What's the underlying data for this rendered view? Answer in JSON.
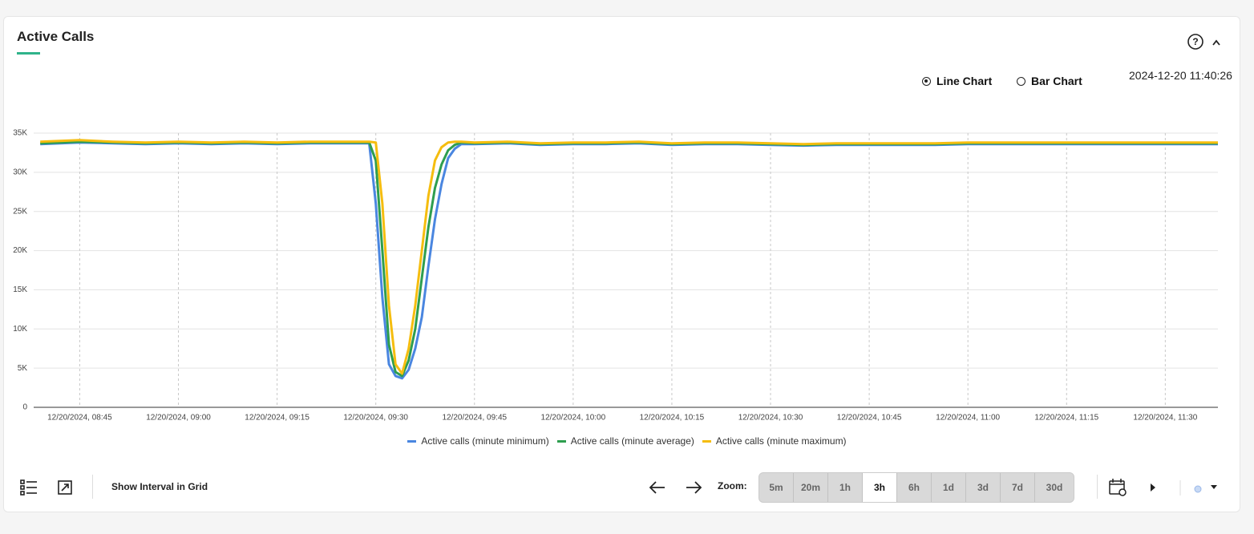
{
  "header": {
    "title": "Active Calls"
  },
  "view_options": [
    {
      "label": "Line Chart",
      "selected": true
    },
    {
      "label": "Bar Chart",
      "selected": false
    }
  ],
  "timestamp": "2024-12-20 11:40:26",
  "chart_data": {
    "type": "line",
    "x": [
      "12/20/2024, 08:39",
      "12/20/2024, 08:45",
      "12/20/2024, 08:50",
      "12/20/2024, 08:55",
      "12/20/2024, 09:00",
      "12/20/2024, 09:05",
      "12/20/2024, 09:10",
      "12/20/2024, 09:15",
      "12/20/2024, 09:20",
      "12/20/2024, 09:25",
      "12/20/2024, 09:29",
      "12/20/2024, 09:30",
      "12/20/2024, 09:31",
      "12/20/2024, 09:32",
      "12/20/2024, 09:33",
      "12/20/2024, 09:34",
      "12/20/2024, 09:35",
      "12/20/2024, 09:36",
      "12/20/2024, 09:37",
      "12/20/2024, 09:38",
      "12/20/2024, 09:39",
      "12/20/2024, 09:40",
      "12/20/2024, 09:41",
      "12/20/2024, 09:42",
      "12/20/2024, 09:43",
      "12/20/2024, 09:45",
      "12/20/2024, 09:50",
      "12/20/2024, 09:55",
      "12/20/2024, 10:00",
      "12/20/2024, 10:05",
      "12/20/2024, 10:10",
      "12/20/2024, 10:15",
      "12/20/2024, 10:20",
      "12/20/2024, 10:25",
      "12/20/2024, 10:30",
      "12/20/2024, 10:35",
      "12/20/2024, 10:40",
      "12/20/2024, 10:45",
      "12/20/2024, 10:50",
      "12/20/2024, 10:55",
      "12/20/2024, 11:00",
      "12/20/2024, 11:05",
      "12/20/2024, 11:10",
      "12/20/2024, 11:15",
      "12/20/2024, 11:20",
      "12/20/2024, 11:25",
      "12/20/2024, 11:30",
      "12/20/2024, 11:35",
      "12/20/2024, 11:38"
    ],
    "series": [
      {
        "name": "Active calls (minute minimum)",
        "color": "#4a86e0",
        "values": [
          33600,
          33800,
          33700,
          33600,
          33700,
          33600,
          33700,
          33600,
          33700,
          33700,
          33700,
          26000,
          14000,
          5500,
          4000,
          3700,
          4800,
          7500,
          11500,
          18000,
          24000,
          28500,
          31800,
          33000,
          33600,
          33600,
          33700,
          33500,
          33600,
          33600,
          33700,
          33500,
          33600,
          33600,
          33500,
          33400,
          33500,
          33500,
          33500,
          33500,
          33600,
          33600,
          33600,
          33600,
          33600,
          33600,
          33600,
          33600,
          33600
        ]
      },
      {
        "name": "Active calls (minute average)",
        "color": "#2e9e4f",
        "values": [
          33700,
          33900,
          33800,
          33700,
          33800,
          33700,
          33800,
          33700,
          33800,
          33800,
          33800,
          31500,
          20000,
          8000,
          4500,
          4000,
          6000,
          10000,
          16500,
          23000,
          28000,
          31000,
          32800,
          33500,
          33800,
          33700,
          33800,
          33600,
          33700,
          33700,
          33800,
          33600,
          33700,
          33700,
          33600,
          33500,
          33600,
          33600,
          33600,
          33600,
          33700,
          33700,
          33700,
          33700,
          33700,
          33700,
          33700,
          33700,
          33700
        ]
      },
      {
        "name": "Active calls (minute maximum)",
        "color": "#f5bd0f",
        "values": [
          33900,
          34100,
          33900,
          33800,
          33900,
          33800,
          33900,
          33800,
          33900,
          33900,
          33900,
          33800,
          26000,
          13000,
          5500,
          4300,
          7500,
          13000,
          20000,
          27000,
          31500,
          33200,
          33800,
          33900,
          33900,
          33800,
          33900,
          33700,
          33800,
          33800,
          33900,
          33700,
          33800,
          33800,
          33700,
          33600,
          33700,
          33700,
          33700,
          33700,
          33800,
          33800,
          33800,
          33800,
          33800,
          33800,
          33800,
          33800,
          33800
        ]
      }
    ],
    "xlim": [
      "12/20/2024, 08:38",
      "12/20/2024, 11:38"
    ],
    "xticks": [
      "12/20/2024, 08:45",
      "12/20/2024, 09:00",
      "12/20/2024, 09:15",
      "12/20/2024, 09:30",
      "12/20/2024, 09:45",
      "12/20/2024, 10:00",
      "12/20/2024, 10:15",
      "12/20/2024, 10:30",
      "12/20/2024, 10:45",
      "12/20/2024, 11:00",
      "12/20/2024, 11:15",
      "12/20/2024, 11:30"
    ],
    "ylim": [
      0,
      35000
    ],
    "yticks": [
      0,
      {
        "value": 5000,
        "label": "5K"
      },
      {
        "value": 10000,
        "label": "10K"
      },
      {
        "value": 15000,
        "label": "15K"
      },
      {
        "value": 20000,
        "label": "20K"
      },
      {
        "value": 25000,
        "label": "25K"
      },
      {
        "value": 30000,
        "label": "30K"
      },
      {
        "value": 35000,
        "label": "35K"
      }
    ],
    "grid": true
  },
  "toolbar": {
    "show_interval": "Show Interval in Grid",
    "zoom_label": "Zoom:",
    "zoom_options": [
      "5m",
      "20m",
      "1h",
      "3h",
      "6h",
      "1d",
      "3d",
      "7d",
      "30d"
    ],
    "zoom_selected_index": 3
  }
}
